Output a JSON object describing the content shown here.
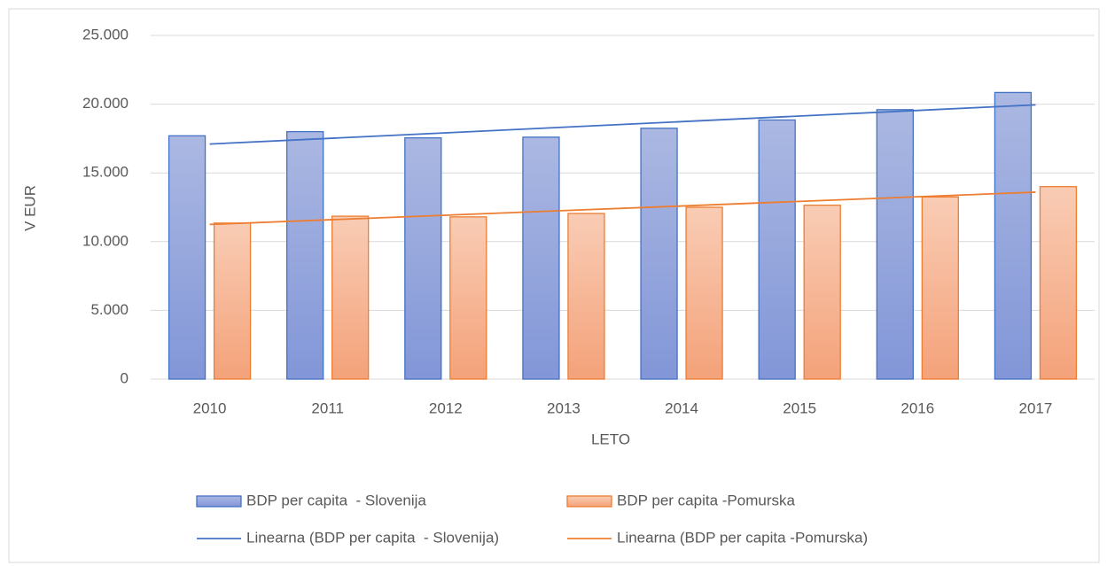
{
  "chart_data": {
    "type": "bar",
    "xlabel": "LETO",
    "ylabel": "V EUR",
    "categories": [
      "2010",
      "2011",
      "2012",
      "2013",
      "2014",
      "2015",
      "2016",
      "2017"
    ],
    "series": [
      {
        "name": "BDP per capita  - Slovenija",
        "color": "#4472c4",
        "values": [
          17700,
          18000,
          17550,
          17600,
          18250,
          18850,
          19600,
          20850
        ]
      },
      {
        "name": "BDP per capita -Pomurska",
        "color": "#ed7d31",
        "values": [
          11350,
          11850,
          11800,
          12050,
          12500,
          12650,
          13250,
          14000
        ]
      },
      {
        "name": "Linearna (BDP per capita  - Slovenija)",
        "color": "#4472c4",
        "kind": "line",
        "values": [
          17100,
          17507,
          17914,
          18321,
          18729,
          19136,
          19543,
          19950
        ]
      },
      {
        "name": "Linearna (BDP per capita -Pomurska)",
        "color": "#ed7d31",
        "kind": "line",
        "values": [
          11250,
          11586,
          11921,
          12257,
          12593,
          12929,
          13264,
          13600
        ]
      }
    ],
    "ylim": [
      0,
      25000
    ],
    "yticks": [
      0,
      {
        "value": 5000,
        "label": "5.000"
      },
      {
        "value": 10000,
        "label": "10.000"
      },
      {
        "value": 15000,
        "label": "15.000"
      },
      {
        "value": 20000,
        "label": "20.000"
      },
      {
        "value": 25000,
        "label": "25.000"
      }
    ],
    "grid": true,
    "legend": "bottom"
  }
}
